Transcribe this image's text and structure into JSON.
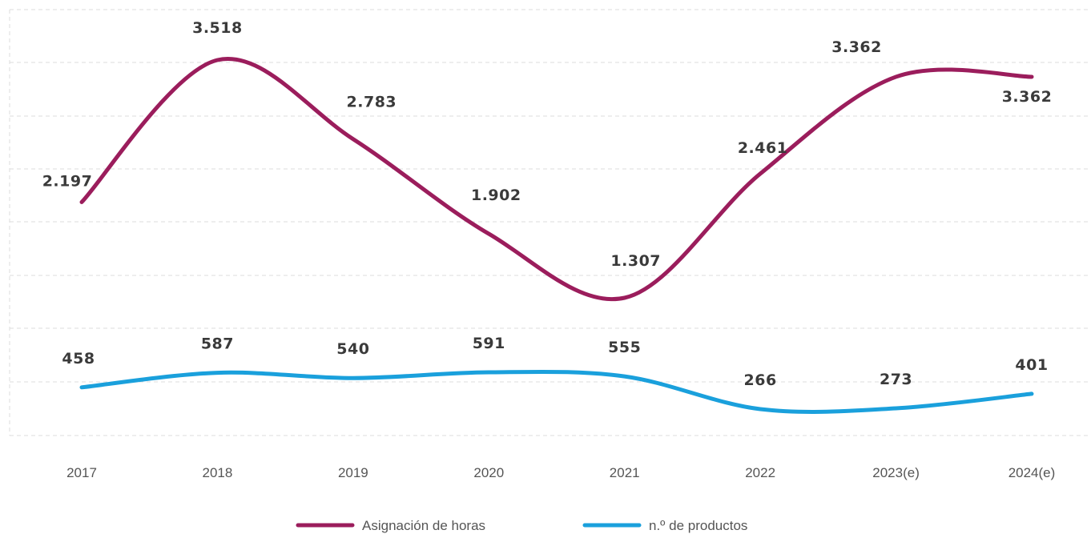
{
  "chart_data": {
    "type": "line",
    "categories": [
      "2017",
      "2018",
      "2019",
      "2020",
      "2021",
      "2022",
      "2023(e)",
      "2024(e)"
    ],
    "series": [
      {
        "name": "Asignación de horas",
        "color": "#9b1d5c",
        "values": [
          2197,
          3518,
          2783,
          1902,
          1307,
          2461,
          3362,
          3362
        ],
        "labels": [
          "2.197",
          "3.518",
          "2.783",
          "1.902",
          "1.307",
          "2.461",
          "3.362",
          "3.362"
        ]
      },
      {
        "name": "n.º de productos",
        "color": "#1aa0dc",
        "values": [
          458,
          587,
          540,
          591,
          555,
          266,
          273,
          401
        ],
        "labels": [
          "458",
          "587",
          "540",
          "591",
          "555",
          "266",
          "273",
          "401"
        ]
      }
    ],
    "grid": true,
    "legend_position": "bottom-center"
  }
}
